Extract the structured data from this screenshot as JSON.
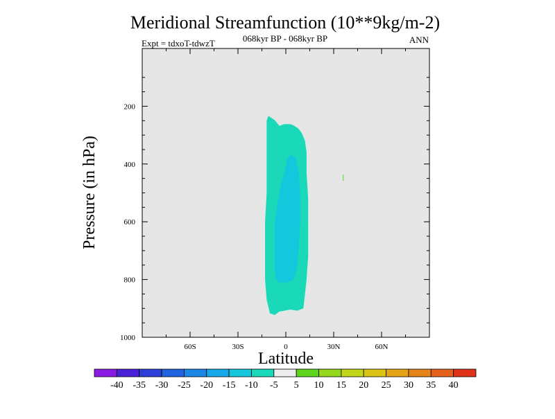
{
  "chart_data": {
    "type": "heatmap",
    "title": "Meridional Streamfunction (10**9kg/m-2)",
    "subtitle": "068kyr BP - 068kyr BP",
    "left_label": "Expt = tdxoT-tdwzT",
    "right_label": "ANN",
    "xlabel": "Latitude",
    "ylabel": "Pressure (in hPa)",
    "xlim": [
      -90,
      90
    ],
    "ylim": [
      1000,
      0
    ],
    "x_ticks": [
      {
        "value": -60,
        "label": "60S"
      },
      {
        "value": -30,
        "label": "30S"
      },
      {
        "value": 0,
        "label": "0"
      },
      {
        "value": 30,
        "label": "30N"
      },
      {
        "value": 60,
        "label": "60N"
      }
    ],
    "y_ticks": [
      {
        "value": 200,
        "label": "200"
      },
      {
        "value": 400,
        "label": "400"
      },
      {
        "value": 600,
        "label": "600"
      },
      {
        "value": 800,
        "label": "800"
      },
      {
        "value": 1000,
        "label": "1000"
      }
    ],
    "background_color": "#e6e6e6",
    "colorbar": {
      "labels": [
        "-40",
        "-35",
        "-30",
        "-25",
        "-20",
        "-15",
        "-10",
        "-5",
        "5",
        "10",
        "15",
        "20",
        "25",
        "30",
        "35",
        "40"
      ],
      "colors": [
        "#8a1be3",
        "#4a1fd8",
        "#2d3fd6",
        "#1f63e0",
        "#1a86e6",
        "#16a8e8",
        "#14c7dc",
        "#1ad9b8",
        "#ededed",
        "#5fd61e",
        "#93d81c",
        "#c2d61a",
        "#dcc416",
        "#e5a316",
        "#e58418",
        "#e5601a",
        "#e0321a"
      ]
    },
    "regions": [
      {
        "level": "-10 to -5",
        "color": "#1ad9b8",
        "outline": [
          [
            -11,
            233
          ],
          [
            -7,
            248
          ],
          [
            -4,
            268
          ],
          [
            -1,
            262
          ],
          [
            3,
            262
          ],
          [
            5,
            267
          ],
          [
            8,
            278
          ],
          [
            10,
            293
          ],
          [
            12,
            320
          ],
          [
            13,
            360
          ],
          [
            13,
            430
          ],
          [
            14,
            520
          ],
          [
            14,
            620
          ],
          [
            14,
            720
          ],
          [
            13,
            800
          ],
          [
            12,
            850
          ],
          [
            11,
            900
          ],
          [
            7,
            908
          ],
          [
            3,
            904
          ],
          [
            0,
            907
          ],
          [
            -4,
            911
          ],
          [
            -7,
            923
          ],
          [
            -10,
            917
          ],
          [
            -12,
            870
          ],
          [
            -13,
            800
          ],
          [
            -13,
            700
          ],
          [
            -13,
            600
          ],
          [
            -12,
            500
          ],
          [
            -12,
            400
          ],
          [
            -12,
            300
          ],
          [
            -12,
            250
          ]
        ]
      },
      {
        "level": "-15 to -10",
        "color": "#14c7dc",
        "outline": [
          [
            3,
            368
          ],
          [
            6,
            375
          ],
          [
            8,
            420
          ],
          [
            9,
            500
          ],
          [
            9,
            600
          ],
          [
            8,
            700
          ],
          [
            7,
            760
          ],
          [
            5,
            800
          ],
          [
            1,
            810
          ],
          [
            -4,
            812
          ],
          [
            -6,
            800
          ],
          [
            -7,
            760
          ],
          [
            -7,
            700
          ],
          [
            -7,
            600
          ],
          [
            -5,
            530
          ],
          [
            -3,
            470
          ],
          [
            0,
            410
          ],
          [
            1,
            380
          ]
        ]
      }
    ],
    "marks": [
      {
        "lat": 36,
        "p_top": 437,
        "p_bottom": 458,
        "color": "#5fd61e"
      }
    ]
  }
}
